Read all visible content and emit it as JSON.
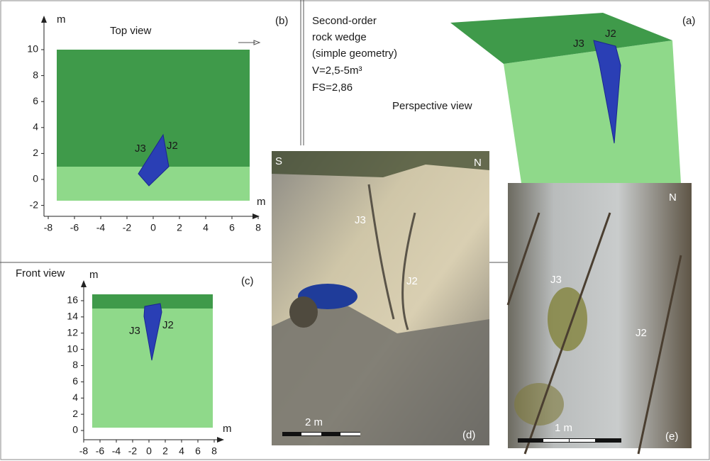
{
  "panel_b": {
    "label": "(b)",
    "title": "Top view",
    "x_unit": "m",
    "y_unit": "m",
    "xticks": [
      -8,
      -6,
      -4,
      -2,
      0,
      2,
      4,
      6,
      8
    ],
    "yticks": [
      -2,
      0,
      2,
      4,
      6,
      8,
      10
    ],
    "joints": [
      "J3",
      "J2"
    ]
  },
  "panel_a": {
    "label": "(a)",
    "description": [
      "Second-order",
      "rock wedge",
      "(simple geometry)",
      "V=2,5-5m³",
      "FS=2,86"
    ],
    "view": "Perspective view",
    "joints": [
      "J3",
      "J2"
    ]
  },
  "panel_c": {
    "label": "(c)",
    "title": "Front view",
    "x_unit": "m",
    "y_unit": "m",
    "xticks": [
      -8,
      -6,
      -4,
      -2,
      0,
      2,
      4,
      6,
      8
    ],
    "yticks": [
      0,
      2,
      4,
      6,
      8,
      10,
      12,
      14,
      16
    ],
    "joints": [
      "J3",
      "J2"
    ]
  },
  "panel_d": {
    "label": "(d)",
    "left": "S",
    "right": "N",
    "joints": [
      "J3",
      "J2"
    ],
    "scale": "2 m"
  },
  "panel_e": {
    "label": "(e)",
    "orientation": "N",
    "joints": [
      "J3",
      "J2"
    ],
    "scale": "1 m"
  }
}
